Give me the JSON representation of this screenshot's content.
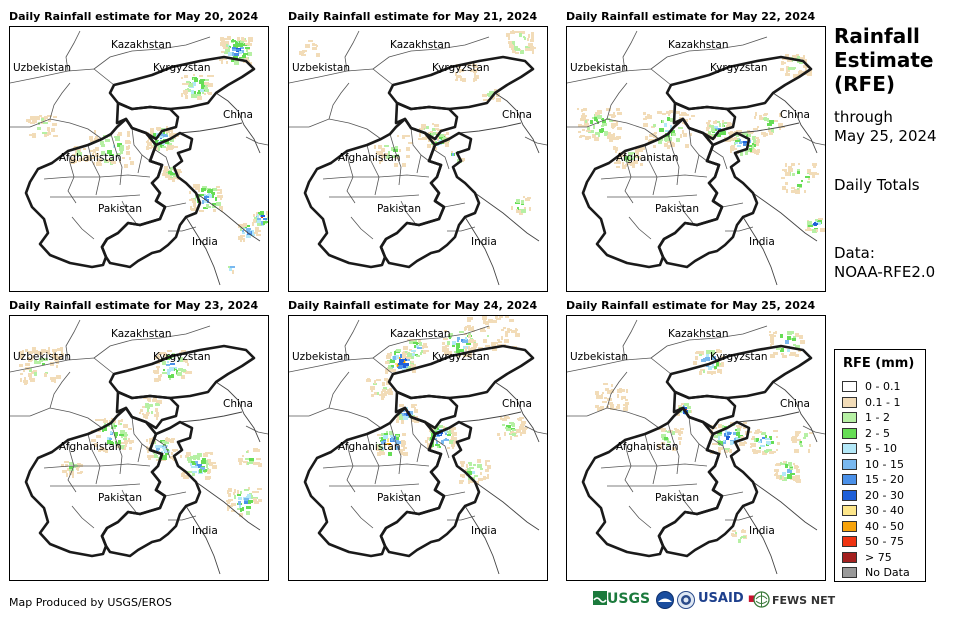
{
  "panels": [
    {
      "title": "Daily Rainfall estimate for May 20, 2024",
      "day": 0
    },
    {
      "title": "Daily Rainfall estimate for May 21, 2024",
      "day": 1
    },
    {
      "title": "Daily Rainfall estimate for May 22, 2024",
      "day": 2
    },
    {
      "title": "Daily Rainfall estimate for May 23, 2024",
      "day": 3
    },
    {
      "title": "Daily Rainfall estimate for May 24, 2024",
      "day": 4
    },
    {
      "title": "Daily Rainfall estimate for May 25, 2024",
      "day": 5
    }
  ],
  "map_labels": {
    "kazakhstan": "Kazakhstan",
    "uzbekistan": "Uzbekistan",
    "kyrgyzstan": "Kyrgyzstan",
    "china": "China",
    "afghanistan": "Afghanistan",
    "pakistan": "Pakistan",
    "india": "India"
  },
  "side": {
    "title_line1": "Rainfall",
    "title_line2": "Estimate",
    "title_line3": "(RFE)",
    "through_line1": "through",
    "through_line2": "May 25, 2024",
    "totals": "Daily Totals",
    "data_line1": "Data:",
    "data_line2": "NOAA-RFE2.0"
  },
  "legend": {
    "title": "RFE (mm)",
    "items": [
      {
        "label": "0 - 0.1",
        "color": "#ffffff"
      },
      {
        "label": "0.1 - 1",
        "color": "#f2dcb8"
      },
      {
        "label": "1 - 2",
        "color": "#b6f0a4"
      },
      {
        "label": "2 - 5",
        "color": "#66dd55"
      },
      {
        "label": "5 - 10",
        "color": "#b3e8f8"
      },
      {
        "label": "10 - 15",
        "color": "#78b8f0"
      },
      {
        "label": "15 - 20",
        "color": "#4a90e8"
      },
      {
        "label": "20 - 30",
        "color": "#1e5fd8"
      },
      {
        "label": "30 - 40",
        "color": "#fde68a"
      },
      {
        "label": "40 - 50",
        "color": "#f7a30a"
      },
      {
        "label": "50 - 75",
        "color": "#ee3311"
      },
      {
        "label": "> 75",
        "color": "#a3201f"
      },
      {
        "label": "No Data",
        "color": "#999999"
      }
    ]
  },
  "credit": "Map Produced by USGS/EROS",
  "logos": {
    "usgs": "USGS",
    "usaid": "USAID",
    "fewsnet": "FEWS NET"
  }
}
